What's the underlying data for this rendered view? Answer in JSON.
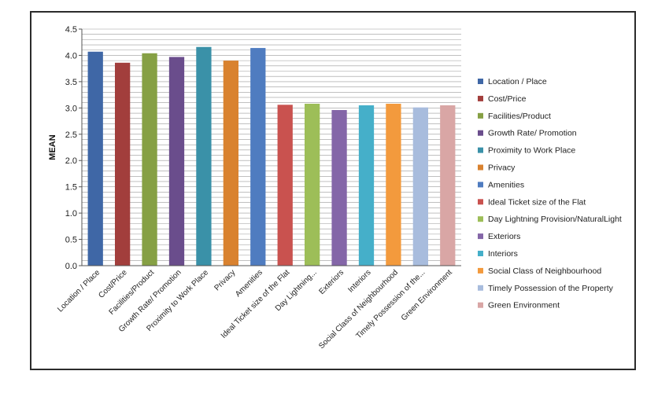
{
  "chart_data": {
    "type": "bar",
    "title": "",
    "xlabel": "",
    "ylabel": "MEAN",
    "ylim": [
      0,
      4.5
    ],
    "y_ticks": [
      "0.0",
      "0.5",
      "1.0",
      "1.5",
      "2.0",
      "2.5",
      "3.0",
      "3.5",
      "4.0",
      "4.5"
    ],
    "grid": true,
    "legend_position": "right",
    "categories": [
      "Location / Place",
      "Cost/Price",
      "Facilities/Product",
      "Growth Rate/ Promotion",
      "Proximity to Work Place",
      "Privacy",
      "Amenities",
      "Ideal Ticket size of the Flat",
      "Day Lightning...",
      "Exteriors",
      "Interiors",
      "Social Class of Neighbourhood",
      "Timely Possession of the...",
      "Green Environment"
    ],
    "values": [
      4.07,
      3.86,
      4.04,
      3.97,
      4.16,
      3.9,
      4.14,
      3.06,
      3.08,
      2.96,
      3.05,
      3.08,
      3.01,
      3.05
    ],
    "colors": [
      "#3F67A6",
      "#A23E3C",
      "#86A044",
      "#6A4D8C",
      "#3A91A8",
      "#D9822F",
      "#4F7CC0",
      "#C9524F",
      "#9DBE58",
      "#8466A8",
      "#45AFC9",
      "#F39A3D",
      "#A8BCDD",
      "#D9A6A5"
    ],
    "legend": [
      "Location / Place",
      "Cost/Price",
      "Facilities/Product",
      "Growth Rate/ Promotion",
      "Proximity to Work Place",
      "Privacy",
      "Amenities",
      "Ideal Ticket size of the Flat",
      "Day Lightning Provision/NaturalLight",
      "Exteriors",
      "Interiors",
      "Social Class of Neighbourhood",
      "Timely Possession of the Property",
      "Green Environment"
    ]
  }
}
